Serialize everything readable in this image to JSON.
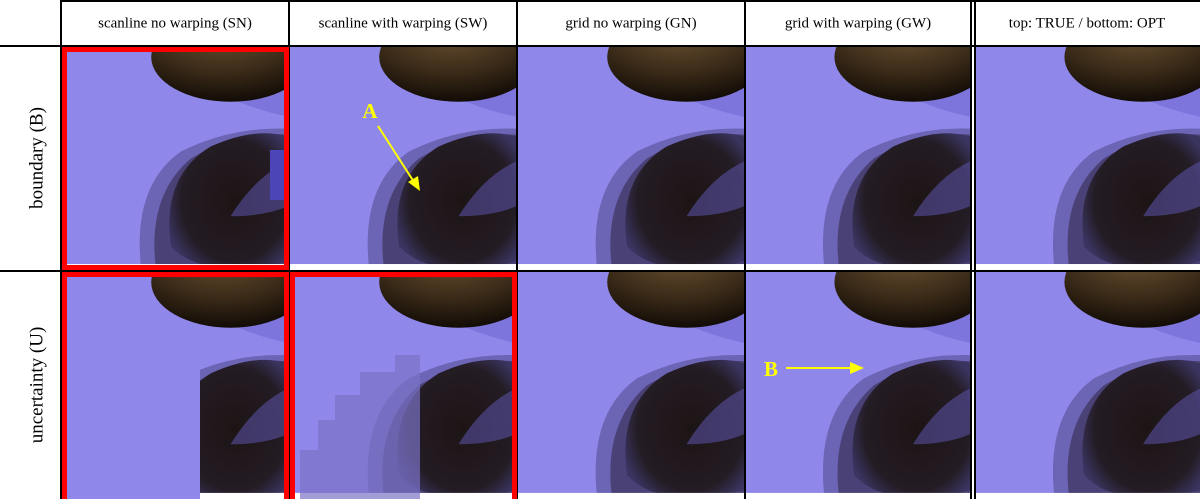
{
  "header": {
    "columns": [
      "scanline no warping (SN)",
      "scanline with warping (SW)",
      "grid no warping (GN)",
      "grid with warping (GW)",
      "top: TRUE / bottom: OPT"
    ]
  },
  "rows": [
    {
      "label": "boundary (B)"
    },
    {
      "label": "uncertainty (U)"
    }
  ],
  "annotations": [
    {
      "label": "A"
    },
    {
      "label": "B"
    }
  ]
}
